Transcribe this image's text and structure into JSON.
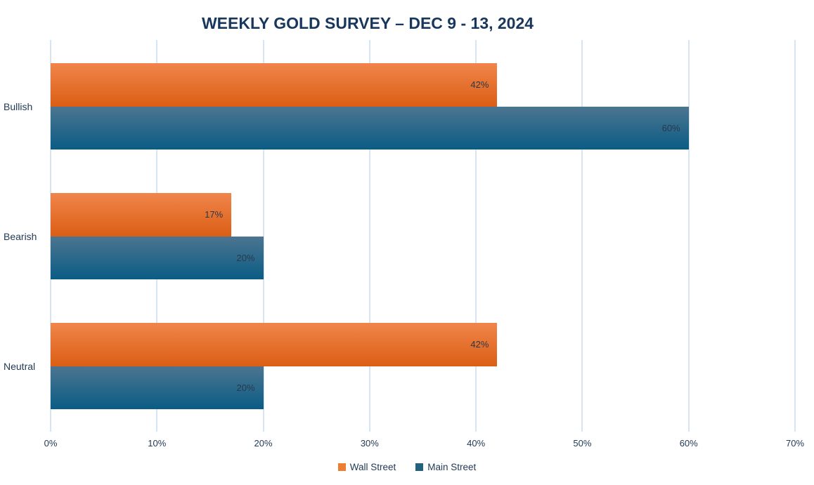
{
  "title": "WEEKLY GOLD SURVEY – DEC 9 - 13, 2024",
  "colors": {
    "title_text": "#17375E",
    "axis_text": "#223A54",
    "data_label_text": "#2B3849",
    "gridline": "#D7E4F1",
    "wall_street_gradient_top": "#F0854B",
    "wall_street_gradient_bottom": "#DB5E14",
    "main_street_gradient_top": "#4C7590",
    "main_street_gradient_bottom": "#0A5C85",
    "wall_street_legend": "#ED7D31",
    "main_street_legend": "#24617F"
  },
  "chart_data": {
    "type": "bar",
    "orientation": "horizontal",
    "title": "WEEKLY GOLD SURVEY – DEC 9 - 13, 2024",
    "categories": [
      "Bullish",
      "Bearish",
      "Neutral"
    ],
    "series": [
      {
        "name": "Wall Street",
        "values": [
          42,
          17,
          42
        ],
        "gradient": [
          "#F0854B",
          "#DB5E14"
        ],
        "legend_color": "#ED7D31"
      },
      {
        "name": "Main Street",
        "values": [
          60,
          20,
          20
        ],
        "gradient": [
          "#4C7590",
          "#0A5C85"
        ],
        "legend_color": "#24617F"
      }
    ],
    "data_labels": [
      [
        "42%",
        "17%",
        "42%"
      ],
      [
        "60%",
        "20%",
        "20%"
      ]
    ],
    "x_ticks": [
      "0%",
      "10%",
      "20%",
      "30%",
      "40%",
      "50%",
      "60%",
      "70%"
    ],
    "xlim": [
      0,
      70
    ],
    "xlabel": "",
    "ylabel": "",
    "grid": "vertical",
    "legend_position": "bottom"
  },
  "legend": {
    "items": [
      {
        "label": "Wall Street"
      },
      {
        "label": "Main Street"
      }
    ]
  }
}
